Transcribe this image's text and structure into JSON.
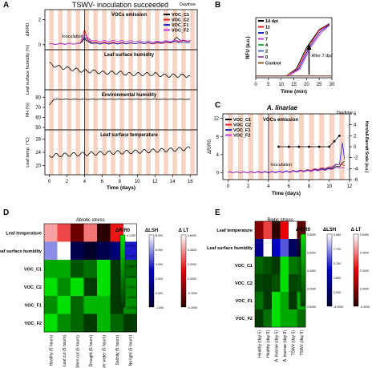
{
  "chart_data": [
    {
      "panel": "A",
      "type": "line",
      "title": "TSWV- inoculation succeeded",
      "corner_label": "Daytime",
      "xlabel": "Time (days)",
      "xticks": [
        0,
        2,
        4,
        6,
        8,
        10,
        12,
        14,
        16
      ],
      "xlim": [
        -0.5,
        16.8
      ],
      "annotation": "Inoculation",
      "background": "alternating day/night bands (peach = daytime)",
      "subplots": [
        {
          "name": "VOCs emission",
          "ylabel": "ΔR/R0",
          "yticks": [
            0,
            2
          ],
          "ylim": [
            -0.2,
            2.6
          ],
          "legend": [
            "VOC_C1",
            "VOC_C2",
            "VOC_F1",
            "VOC_F2"
          ],
          "legend_placement": "top-right",
          "series": [
            {
              "name": "VOC_C1",
              "color": "#000000",
              "x": [
                0,
                3.5,
                4,
                4.2,
                5,
                8,
                12,
                14,
                14.5,
                15,
                16
              ],
              "y": [
                0.05,
                0.1,
                0.5,
                0.3,
                0.1,
                0.1,
                0.15,
                0.2,
                0.6,
                0.3,
                0.3
              ]
            },
            {
              "name": "VOC_C2",
              "color": "#e8191d",
              "x": [
                0,
                3.5,
                4,
                4.3,
                5,
                8,
                12,
                14,
                15,
                16
              ],
              "y": [
                0.05,
                0.1,
                1.2,
                0.5,
                0.2,
                0.15,
                0.1,
                0.2,
                0.3,
                0.35
              ]
            },
            {
              "name": "VOC_F1",
              "color": "#1f2bd1",
              "x": [
                0,
                3.5,
                4,
                4.3,
                5,
                8,
                12,
                14,
                15,
                16
              ],
              "y": [
                0.05,
                0.1,
                0.6,
                0.4,
                0.1,
                0.1,
                0.15,
                0.25,
                0.2,
                0.2
              ]
            },
            {
              "name": "VOC_F2",
              "color": "#c43bd6",
              "x": [
                0,
                3.5,
                4,
                4.3,
                5,
                8,
                12,
                14,
                15,
                16
              ],
              "y": [
                0.05,
                0.1,
                0.8,
                0.6,
                0.3,
                0.3,
                0.25,
                0.3,
                0.35,
                0.3
              ]
            }
          ]
        },
        {
          "name": "Leaf surface humidity",
          "ylabel": "Leaf surface humidity (%)",
          "series": [
            {
              "name": "Leaf surface humidity",
              "color": "#000000",
              "x": [
                0,
                1,
                2,
                3,
                4,
                5,
                6,
                7,
                8,
                9,
                10,
                11,
                12,
                13,
                14,
                15,
                16
              ],
              "y": [
                62,
                60,
                59,
                58,
                57,
                57,
                56,
                56,
                56,
                55,
                55,
                55,
                55,
                54,
                54,
                54,
                54
              ]
            }
          ]
        },
        {
          "name": "Environmental humidity",
          "ylabel": "RH (%)",
          "yticks": [
            50,
            60,
            70,
            80
          ],
          "ylim": [
            50,
            85
          ],
          "series": [
            {
              "name": "Environmental humidity",
              "color": "#000000",
              "x": [
                0,
                0.5,
                1,
                4,
                8,
                12,
                16
              ],
              "y": [
                72,
                78,
                78,
                78,
                78,
                78,
                78
              ]
            }
          ]
        },
        {
          "name": "Leaf surface temperature",
          "ylabel": "Leaf temp. (°C)",
          "yticks": [
            20,
            24,
            28
          ],
          "ylim": [
            18,
            30
          ],
          "series": [
            {
              "name": "Leaf surface temperature",
              "color": "#000000",
              "x": [
                0,
                2,
                4,
                6,
                8,
                10,
                12,
                14,
                16
              ],
              "y": [
                23,
                23.3,
                23.5,
                23.8,
                24,
                24.2,
                24.5,
                24.8,
                25.2
              ]
            }
          ]
        }
      ]
    },
    {
      "panel": "B",
      "type": "line",
      "xlabel": "Time (min)",
      "ylabel": "RFU (a.u.)",
      "xticks": [
        0,
        5,
        10,
        15,
        20,
        25,
        30
      ],
      "xlim": [
        0,
        30
      ],
      "ylim": [
        0,
        2000
      ],
      "annotation": "After 7 dpi",
      "legend_placement": "top-left",
      "series": [
        {
          "name": "14 dpi",
          "color": "#000000",
          "x": [
            0,
            12,
            16,
            20,
            25,
            29
          ],
          "y": [
            60,
            60,
            300,
            1000,
            1600,
            1800
          ]
        },
        {
          "name": "11",
          "color": "#e8191d",
          "x": [
            0,
            12,
            16.5,
            20.5,
            25,
            29
          ],
          "y": [
            60,
            60,
            300,
            1000,
            1580,
            1780
          ]
        },
        {
          "name": "9",
          "color": "#1f2bd1",
          "x": [
            0,
            13,
            17,
            21,
            25.5,
            29
          ],
          "y": [
            60,
            60,
            300,
            1000,
            1550,
            1760
          ]
        },
        {
          "name": "7",
          "color": "#c43bd6",
          "x": [
            0,
            13,
            17.5,
            21.5,
            26,
            29
          ],
          "y": [
            60,
            60,
            300,
            1000,
            1520,
            1740
          ]
        },
        {
          "name": "4",
          "color": "#2fb34a",
          "x": [
            0,
            30
          ],
          "y": [
            60,
            65
          ]
        },
        {
          "name": "2",
          "color": "#5b6dd9",
          "x": [
            0,
            30
          ],
          "y": [
            60,
            62
          ]
        },
        {
          "name": "0",
          "color": "#9a57a6",
          "x": [
            0,
            30
          ],
          "y": [
            60,
            64
          ]
        },
        {
          "name": "Control",
          "color": "#8a5a2a",
          "x": [
            0,
            30
          ],
          "y": [
            60,
            63
          ]
        }
      ]
    },
    {
      "panel": "C",
      "type": "line",
      "title": "A. linariae",
      "subtitle": "VOCs emission",
      "corner_label": "Daytime",
      "xlabel": "Time (days)",
      "ylabel": "ΔR/R0",
      "y2label": "Horsfall-Barratt Scale (a.u.)",
      "xticks": [
        0,
        2,
        4,
        6,
        8,
        10,
        12
      ],
      "yticks": [
        0,
        4,
        8,
        12
      ],
      "y2ticks": [
        -6,
        -4,
        -2,
        0,
        2,
        4,
        6
      ],
      "xlim": [
        -0.5,
        12
      ],
      "ylim": [
        -1.5,
        13
      ],
      "y2lim": [
        -6,
        6
      ],
      "annotation": "Inoculation",
      "legend_placement": "top-left",
      "series": [
        {
          "name": "VOC_C1",
          "color": "#000000",
          "x": [
            0,
            4,
            6,
            8,
            10,
            11,
            11.5
          ],
          "y": [
            0.1,
            0.1,
            0.2,
            0.4,
            0.8,
            1.5,
            2.5
          ]
        },
        {
          "name": "VOC_C2",
          "color": "#e8191d",
          "x": [
            0,
            4,
            6,
            8,
            10,
            11,
            11.5
          ],
          "y": [
            0.1,
            0.1,
            0.3,
            0.6,
            1.2,
            2.0,
            1.5
          ]
        },
        {
          "name": "VOC_F1",
          "color": "#1f2bd1",
          "x": [
            0,
            4,
            6,
            8,
            10,
            11,
            11.3,
            11.5
          ],
          "y": [
            0.1,
            0.2,
            0.3,
            0.5,
            1.0,
            2.0,
            6.5,
            3.0
          ]
        },
        {
          "name": "VOC_F2",
          "color": "#c43bd6",
          "x": [
            0,
            4,
            6,
            8,
            10,
            11,
            11.5
          ],
          "y": [
            0.1,
            0.1,
            0.2,
            0.4,
            0.7,
            1.2,
            1.0
          ]
        },
        {
          "name": "Horsfall-Barratt",
          "axis": "right",
          "color": "#000000",
          "x": [
            5,
            6,
            7,
            8,
            9,
            10,
            10.5,
            11
          ],
          "y": [
            0,
            0,
            0,
            0,
            0,
            0,
            1,
            2
          ]
        }
      ]
    },
    {
      "panel": "D",
      "type": "heatmap",
      "title": "Abiotic stress",
      "columns": [
        "Healthy (5 hours)",
        "Leaf cut (5 hours)",
        "Stem cut (5 hours)",
        "Drought (5 hours)",
        "Over water (5 hours)",
        "Salinity (5 hours)",
        "No light (5 hours)"
      ],
      "rows": [
        "Leaf temperature",
        "Leaf surface humidity",
        "VOC_C1",
        "VOC_C2",
        "VOC_F1",
        "VOC_F2"
      ],
      "colorbars": [
        {
          "label": "ΔR/R0",
          "ticks": [
            "0.1250",
            "0.1000",
            "0.0750",
            "0.0500",
            "0.0250",
            "0.0000",
            "-0.0250",
            "-0.0500"
          ],
          "colors": [
            "#00e000",
            "#003a00"
          ]
        },
        {
          "label": "ΔLSH",
          "ticks": [
            "8.000",
            "6.000",
            "4.000",
            "2.000",
            "0.000",
            "-1.000"
          ],
          "colors": [
            "#ffffff",
            "#0000c8",
            "#00002a"
          ]
        },
        {
          "label": "Δ LT",
          "ticks": [
            "0.6000",
            "0.4000",
            "0.2000",
            "0.0000",
            "-0.2000",
            "-0.3000"
          ],
          "colors": [
            "#ffffff",
            "#e80000",
            "#2a0000"
          ]
        }
      ],
      "values": [
        [
          0.35,
          0.25,
          0.0,
          0.3,
          -0.1,
          0.2,
          0.45
        ],
        [
          3.0,
          4.0,
          0.0,
          -0.5,
          0.0,
          0.5,
          2.0
        ],
        [
          0.1,
          0.1,
          0.07,
          0.08,
          0.12,
          0.06,
          0.08
        ],
        [
          0.02,
          0.01,
          0.02,
          0.0,
          0.02,
          0.0,
          0.01
        ],
        [
          0.05,
          0.07,
          0.04,
          0.06,
          0.06,
          0.03,
          0.05
        ],
        [
          0.08,
          0.06,
          0.05,
          0.04,
          0.07,
          0.05,
          0.04
        ]
      ]
    },
    {
      "panel": "E",
      "type": "heatmap",
      "title": "Biotic stress",
      "columns": [
        "Healthy (day 5)",
        "Healthy (day 9)",
        "A. linariae (day 5)",
        "A. linariae (day 9)",
        "TSWV (day 5)",
        "TSWV (day 9)"
      ],
      "rows": [
        "Leaf temperature",
        "Leaf surface humidity",
        "VOC_C1",
        "VOC_C2",
        "VOC_F1",
        "VOC_F2"
      ],
      "colorbars": [
        {
          "label": "ΔR/R0",
          "ticks": [
            "0.8000",
            "0.6000",
            "0.4000",
            "0.2000",
            "0.0000"
          ],
          "colors": [
            "#00e000",
            "#003a00"
          ]
        },
        {
          "label": "ΔLSH",
          "ticks": [
            "9.680",
            "7.720",
            "5.760",
            "3.800",
            "0.000",
            "-5.2000"
          ],
          "colors": [
            "#ffffff",
            "#0000c8",
            "#00002a"
          ]
        },
        {
          "label": "Δ LT",
          "ticks": [
            "0.6400",
            "0.4000",
            "0.2000",
            "0.0000",
            "-0.2000"
          ],
          "colors": [
            "#ffffff",
            "#e80000",
            "#2a0000"
          ]
        }
      ],
      "values": [
        [
          0.2,
          0.35,
          0.1,
          0.3,
          0.5,
          0.15
        ],
        [
          -2.0,
          2.0,
          -1.0,
          0.0,
          -3.0,
          -4.0
        ],
        [
          0.3,
          0.25,
          0.2,
          0.6,
          0.35,
          0.3
        ],
        [
          0.2,
          0.15,
          0.25,
          0.9,
          0.2,
          0.25
        ],
        [
          0.25,
          0.2,
          0.35,
          0.3,
          0.2,
          0.3
        ],
        [
          0.15,
          0.2,
          0.3,
          0.25,
          0.25,
          0.2
        ]
      ]
    }
  ]
}
